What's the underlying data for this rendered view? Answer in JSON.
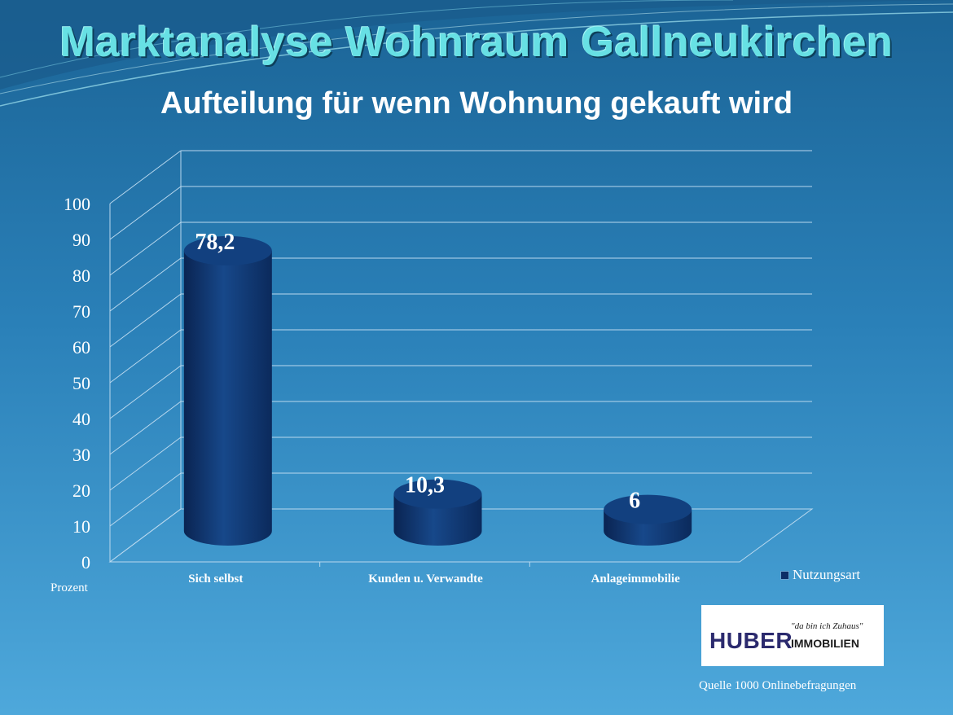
{
  "slide": {
    "title": "Marktanalyse Wohnraum Gallneukirchen",
    "subtitle": "Aufteilung für wenn Wohnung gekauft wird",
    "unit_label": "Prozent",
    "source": "Quelle 1000 Onlinebefragungen"
  },
  "logo": {
    "brand": "HUBER",
    "brand_suffix": "IMMOBILIEN",
    "slogan": "\"da bin ich Zuhaus\""
  },
  "colors": {
    "background_top": "#1d6d9c",
    "background_bottom": "#4aa3d6",
    "bar": "#0f3a78",
    "bar_dark": "#0a2552",
    "title": "#67e0e4"
  },
  "chart_data": {
    "type": "bar",
    "categories": [
      "Sich selbst",
      "Kunden u. Verwandte",
      "Anlageimmobilie"
    ],
    "series": [
      {
        "name": "Nutzungsart",
        "values": [
          78.2,
          10.3,
          6
        ]
      }
    ],
    "data_labels": [
      "78,2",
      "10,3",
      "6"
    ],
    "ylim": [
      0,
      100
    ],
    "yticks": [
      "0",
      "10",
      "20",
      "30",
      "40",
      "50",
      "60",
      "70",
      "80",
      "90",
      "100"
    ],
    "grid": true,
    "legend_position": "bottom-right",
    "style": "3d-cylinder"
  }
}
